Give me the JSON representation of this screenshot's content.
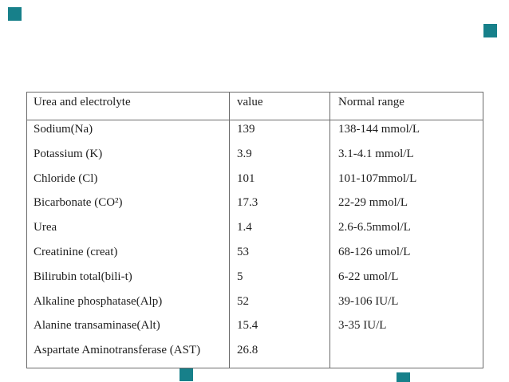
{
  "page": {
    "background": "#ffffff",
    "accent_color": "#17808a",
    "table_border_color": "#6b6b6b",
    "text_color": "#1f1f1f"
  },
  "decorations": {
    "square_color": "#17808a",
    "squares": [
      "top-left",
      "upper-right",
      "bottom-left-of-center",
      "bottom-right"
    ]
  },
  "table": {
    "headers": [
      "Urea and electrolyte",
      "value",
      "Normal range"
    ],
    "rows": [
      {
        "analyte": "Sodium(Na)",
        "value": "139",
        "normal_range": "138-144 mmol/L"
      },
      {
        "analyte": "Potassium (K)",
        "value": "3.9",
        "normal_range": "3.1-4.1 mmol/L"
      },
      {
        "analyte": "Chloride (Cl)",
        "value": "101",
        "normal_range": "101-107mmol/L"
      },
      {
        "analyte": "Bicarbonate (CO²)",
        "value": "17.3",
        "normal_range": "22-29 mmol/L"
      },
      {
        "analyte": "Urea",
        "value": "1.4",
        "normal_range": "2.6-6.5mmol/L"
      },
      {
        "analyte": "Creatinine (creat)",
        "value": "53",
        "normal_range": "68-126 umol/L"
      },
      {
        "analyte": "Bilirubin total(bili-t)",
        "value": "5",
        "normal_range": "6-22 umol/L"
      },
      {
        "analyte": "Alkaline phosphatase(Alp)",
        "value": "52",
        "normal_range": "39-106 IU/L"
      },
      {
        "analyte": "Alanine transaminase(Alt)",
        "value": "15.4",
        "normal_range": "3-35 IU/L"
      },
      {
        "analyte": "Aspartate Aminotransferase (AST)",
        "value": "26.8",
        "normal_range": ""
      }
    ]
  }
}
